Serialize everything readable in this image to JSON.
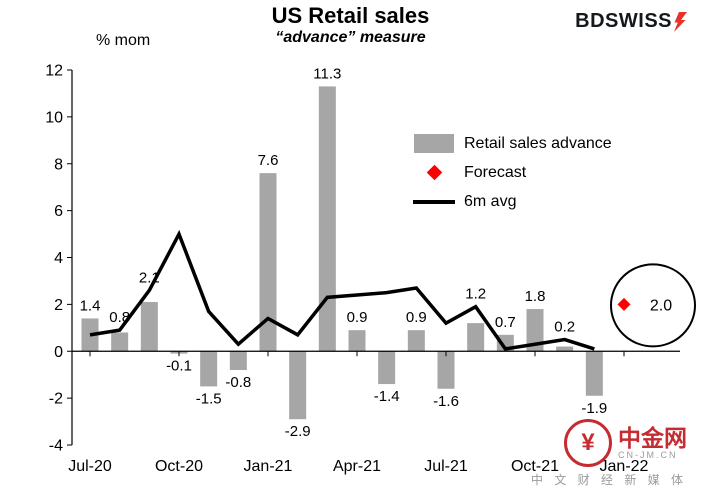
{
  "header": {
    "title": "US Retail sales",
    "subtitle": "“advance” measure",
    "axis_unit_label": "% mom"
  },
  "brand": {
    "name_part1": "BD",
    "name_part2": "SWISS",
    "text_color": "#15181d",
    "bolt_color": "#e8312a"
  },
  "legend": {
    "items": [
      {
        "label": "Retail sales advance",
        "swatch": "bar",
        "color": "#a6a6a6"
      },
      {
        "label": "Forecast",
        "swatch": "diamond",
        "color": "#ff0000"
      },
      {
        "label": "6m avg",
        "swatch": "line",
        "color": "#000000"
      }
    ]
  },
  "chart_data": {
    "type": "bar",
    "title": "US Retail sales",
    "subtitle": "“advance” measure",
    "ylabel": "% mom",
    "ylim": [
      -4,
      12
    ],
    "yticks": [
      -4,
      -2,
      0,
      2,
      4,
      6,
      8,
      10,
      12
    ],
    "grid": false,
    "legend_position": "inside-top-right",
    "categories": [
      "Jul-20",
      "Aug-20",
      "Sep-20",
      "Oct-20",
      "Nov-20",
      "Dec-20",
      "Jan-21",
      "Feb-21",
      "Mar-21",
      "Apr-21",
      "May-21",
      "Jun-21",
      "Jul-21",
      "Aug-21",
      "Sep-21",
      "Oct-21",
      "Nov-21",
      "Dec-21"
    ],
    "x_tick_labels": [
      "Jul-20",
      "Oct-20",
      "Jan-21",
      "Apr-21",
      "Jul-21",
      "Oct-21",
      "Jan-22"
    ],
    "series": [
      {
        "name": "Retail sales advance",
        "type": "bar",
        "color": "#a6a6a6",
        "data_labels": true,
        "values": [
          1.4,
          0.8,
          2.1,
          -0.1,
          -1.5,
          -0.8,
          7.6,
          -2.9,
          11.3,
          0.9,
          -1.4,
          0.9,
          -1.6,
          1.2,
          0.7,
          1.8,
          0.2,
          -1.9
        ]
      },
      {
        "name": "6m avg",
        "type": "line",
        "color": "#000000",
        "values": [
          0.7,
          0.9,
          2.6,
          5.0,
          1.7,
          0.3,
          1.4,
          0.7,
          2.3,
          2.4,
          2.5,
          2.7,
          1.2,
          1.9,
          0.1,
          0.3,
          0.5,
          0.1
        ]
      }
    ],
    "forecast": {
      "name": "Forecast",
      "category": "Jan-22",
      "value": 2.0,
      "label": "2.0",
      "color": "#ff0000",
      "marker": "diamond",
      "annotated_with_circle": true
    }
  },
  "watermark": {
    "badge_glyph": "¥",
    "site_name": "中金网",
    "site_url": "CN-JM.CN",
    "tagline": "中 文 财 经 新 媒 体",
    "color": "#c52b30",
    "tagline_color": "#9b9b9b"
  }
}
